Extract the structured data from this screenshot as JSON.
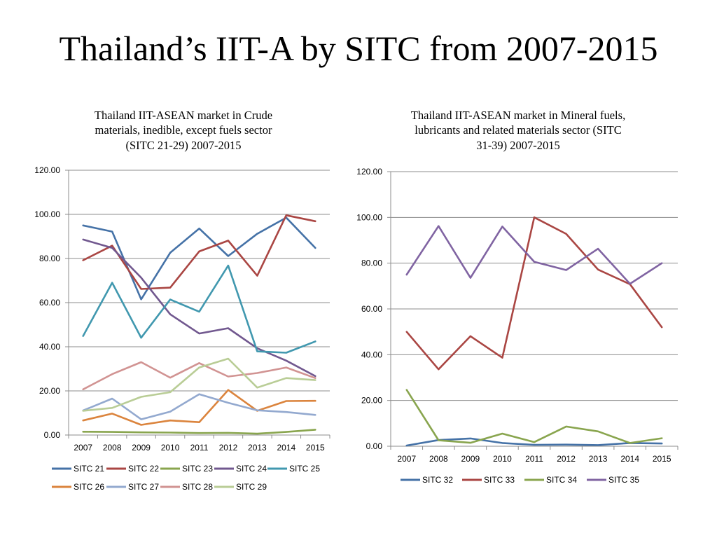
{
  "slide": {
    "title": "Thailand’s IIT-A by SITC from 2007-2015"
  },
  "chart_data": [
    {
      "type": "line",
      "title_lines": [
        "Thailand IIT-ASEAN market in Crude",
        "materials, inedible, except fuels sector",
        "(SITC 21-29) 2007-2015"
      ],
      "categories": [
        "2007",
        "2008",
        "2009",
        "2010",
        "2011",
        "2012",
        "2013",
        "2014",
        "2015"
      ],
      "ylim": [
        0,
        120
      ],
      "yticks": [
        "0.00",
        "20.00",
        "40.00",
        "60.00",
        "80.00",
        "100.00",
        "120.00"
      ],
      "grid": true,
      "legend_position": "bottom",
      "series": [
        {
          "name": "SITC 21",
          "color": "#4572A7",
          "values": [
            95.0,
            92.2,
            61.5,
            82.6,
            93.6,
            81.1,
            91.2,
            98.5,
            84.8
          ]
        },
        {
          "name": "SITC 22",
          "color": "#AA4643",
          "values": [
            79.2,
            85.8,
            66.2,
            66.8,
            83.2,
            88.1,
            72.2,
            99.6,
            96.9
          ]
        },
        {
          "name": "SITC 23",
          "color": "#89A54E",
          "values": [
            1.5,
            1.4,
            1.2,
            1.1,
            0.9,
            1.0,
            0.6,
            1.4,
            2.4
          ]
        },
        {
          "name": "SITC 24",
          "color": "#71588F",
          "values": [
            88.6,
            84.8,
            71.3,
            54.7,
            46.0,
            48.4,
            39.3,
            33.7,
            26.7
          ]
        },
        {
          "name": "SITC 25",
          "color": "#4198AF",
          "values": [
            44.9,
            69.0,
            44.1,
            61.4,
            55.9,
            76.8,
            37.9,
            37.3,
            42.4
          ]
        },
        {
          "name": "SITC 26",
          "color": "#DB843D",
          "values": [
            6.6,
            9.7,
            4.6,
            6.6,
            5.8,
            20.4,
            11.0,
            15.4,
            15.5
          ]
        },
        {
          "name": "SITC 27",
          "color": "#93A9CF",
          "values": [
            11.1,
            16.5,
            7.1,
            10.6,
            18.5,
            14.6,
            11.2,
            10.4,
            9.1
          ]
        },
        {
          "name": "SITC 28",
          "color": "#D19392",
          "values": [
            20.7,
            27.6,
            33.0,
            26.0,
            32.6,
            26.5,
            28.1,
            30.6,
            25.8
          ]
        },
        {
          "name": "SITC 29",
          "color": "#B9CD96",
          "values": [
            11.0,
            12.3,
            17.3,
            19.4,
            30.6,
            34.6,
            21.5,
            25.8,
            24.9
          ]
        }
      ],
      "legend_rows": [
        [
          "SITC 21",
          "SITC 22",
          "SITC 23",
          "SITC 24",
          "SITC 25"
        ],
        [
          "SITC 26",
          "SITC 27",
          "SITC 28",
          "SITC 29"
        ]
      ]
    },
    {
      "type": "line",
      "title_lines": [
        "Thailand IIT-ASEAN market in Mineral fuels,",
        "lubricants and related materials sector (SITC",
        "31-39) 2007-2015"
      ],
      "categories": [
        "2007",
        "2008",
        "2009",
        "2010",
        "2011",
        "2012",
        "2013",
        "2014",
        "2015"
      ],
      "ylim": [
        0,
        120
      ],
      "yticks": [
        "0.00",
        "20.00",
        "40.00",
        "60.00",
        "80.00",
        "100.00",
        "120.00"
      ],
      "grid": true,
      "legend_position": "bottom",
      "series": [
        {
          "name": "SITC 32",
          "color": "#4572A7",
          "values": [
            0.3,
            2.7,
            3.4,
            1.4,
            0.6,
            0.7,
            0.5,
            1.4,
            1.2
          ]
        },
        {
          "name": "SITC 33",
          "color": "#AA4643",
          "values": [
            50.0,
            33.6,
            48.1,
            38.7,
            100.0,
            92.8,
            77.2,
            70.8,
            52.0
          ]
        },
        {
          "name": "SITC 34",
          "color": "#89A54E",
          "values": [
            24.6,
            2.6,
            1.5,
            5.5,
            1.8,
            8.6,
            6.5,
            1.4,
            3.5
          ]
        },
        {
          "name": "SITC 35",
          "color": "#8064A2",
          "values": [
            75.0,
            96.2,
            73.6,
            96.0,
            80.6,
            77.0,
            86.3,
            71.0,
            80.0
          ]
        }
      ],
      "legend_rows": [
        [
          "SITC 32",
          "SITC 33",
          "SITC 34",
          "SITC 35"
        ]
      ]
    }
  ]
}
